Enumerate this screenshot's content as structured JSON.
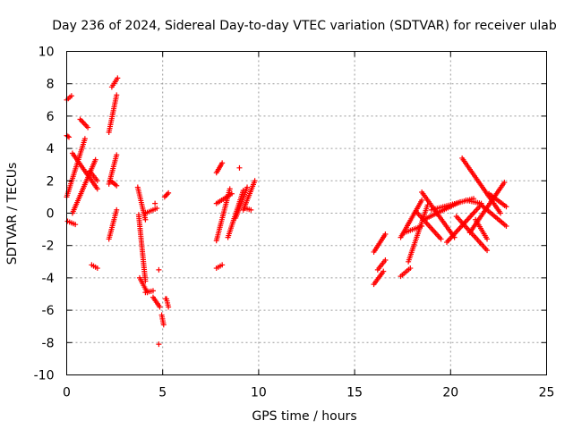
{
  "chart_data": {
    "type": "scatter",
    "title": "Day 236 of 2024, Sidereal Day-to-day VTEC variation (SDTVAR) for receiver ulab",
    "xlabel": "GPS time / hours",
    "ylabel": "SDTVAR / TECUs",
    "xlim": [
      0,
      25
    ],
    "ylim": [
      -10,
      10
    ],
    "xticks": [
      0,
      5,
      10,
      15,
      20,
      25
    ],
    "yticks": [
      -10,
      -8,
      -6,
      -4,
      -2,
      0,
      2,
      4,
      6,
      8,
      10
    ],
    "xtick_labels": [
      "0",
      "5",
      "10",
      "15",
      "20",
      "25"
    ],
    "ytick_labels": [
      "-10",
      "-8",
      "-6",
      "-4",
      "-2",
      "0",
      "2",
      "4",
      "6",
      "8",
      "10"
    ],
    "grid": true,
    "marker": "+",
    "color": "#ff0000",
    "series": [
      {
        "name": "SDTVAR",
        "segments": [
          {
            "x0": 0.0,
            "y0": 7.0,
            "x1": 0.25,
            "y1": 7.25
          },
          {
            "x0": 0.0,
            "y0": 4.8,
            "x1": 0.12,
            "y1": 4.7
          },
          {
            "x0": 0.0,
            "y0": 1.0,
            "x1": 0.95,
            "y1": 4.6
          },
          {
            "x0": 0.05,
            "y0": -0.5,
            "x1": 0.45,
            "y1": -0.7
          },
          {
            "x0": 0.3,
            "y0": 0.0,
            "x1": 1.5,
            "y1": 3.3
          },
          {
            "x0": 0.3,
            "y0": 3.7,
            "x1": 1.6,
            "y1": 1.5
          },
          {
            "x0": 0.7,
            "y0": 5.8,
            "x1": 1.1,
            "y1": 5.3
          },
          {
            "x0": 1.2,
            "y0": 2.6,
            "x1": 1.6,
            "y1": 2.0
          },
          {
            "x0": 1.3,
            "y0": -3.2,
            "x1": 1.6,
            "y1": -3.4
          },
          {
            "x0": 2.2,
            "y0": 5.0,
            "x1": 2.6,
            "y1": 7.3
          },
          {
            "x0": 2.35,
            "y0": 7.8,
            "x1": 2.65,
            "y1": 8.35
          },
          {
            "x0": 2.2,
            "y0": 1.8,
            "x1": 2.6,
            "y1": 3.6
          },
          {
            "x0": 2.2,
            "y0": -1.6,
            "x1": 2.6,
            "y1": 0.2
          },
          {
            "x0": 2.3,
            "y0": 2.0,
            "x1": 2.6,
            "y1": 1.7
          },
          {
            "x0": 3.7,
            "y0": 1.6,
            "x1": 4.1,
            "y1": -0.4
          },
          {
            "x0": 3.75,
            "y0": -0.1,
            "x1": 4.1,
            "y1": -4.2
          },
          {
            "x0": 3.8,
            "y0": -4.0,
            "x1": 4.2,
            "y1": -4.9
          },
          {
            "x0": 4.1,
            "y0": 0.0,
            "x1": 4.7,
            "y1": 0.3
          },
          {
            "x0": 4.1,
            "y0": -4.9,
            "x1": 4.5,
            "y1": -4.8
          },
          {
            "x0": 4.5,
            "y0": -5.2,
            "x1": 4.85,
            "y1": -5.8
          },
          {
            "x0": 4.95,
            "y0": -6.3,
            "x1": 5.05,
            "y1": -6.9
          },
          {
            "x0": 5.2,
            "y0": -5.3,
            "x1": 5.3,
            "y1": -5.8
          },
          {
            "x0": 5.1,
            "y0": 1.0,
            "x1": 5.3,
            "y1": 1.25
          },
          {
            "x0": 7.8,
            "y0": -1.7,
            "x1": 8.5,
            "y1": 1.5
          },
          {
            "x0": 7.8,
            "y0": 2.5,
            "x1": 8.1,
            "y1": 3.1
          },
          {
            "x0": 7.8,
            "y0": -3.4,
            "x1": 8.1,
            "y1": -3.2
          },
          {
            "x0": 7.8,
            "y0": 0.6,
            "x1": 8.6,
            "y1": 1.2
          },
          {
            "x0": 8.4,
            "y0": -1.5,
            "x1": 9.2,
            "y1": 1.4
          },
          {
            "x0": 8.8,
            "y0": -0.3,
            "x1": 9.4,
            "y1": 1.6
          },
          {
            "x0": 9.2,
            "y0": 0.2,
            "x1": 9.8,
            "y1": 2.0
          },
          {
            "x0": 9.3,
            "y0": 0.3,
            "x1": 9.6,
            "y1": 0.2
          },
          {
            "x0": 16.0,
            "y0": -4.4,
            "x1": 16.5,
            "y1": -3.6
          },
          {
            "x0": 16.0,
            "y0": -2.4,
            "x1": 16.6,
            "y1": -1.3
          },
          {
            "x0": 16.2,
            "y0": -3.5,
            "x1": 16.6,
            "y1": -2.9
          },
          {
            "x0": 17.4,
            "y0": -1.5,
            "x1": 18.5,
            "y1": 0.8
          },
          {
            "x0": 17.4,
            "y0": -3.9,
            "x1": 17.9,
            "y1": -3.4
          },
          {
            "x0": 17.6,
            "y0": -1.2,
            "x1": 18.5,
            "y1": -0.8
          },
          {
            "x0": 17.8,
            "y0": -3.0,
            "x1": 18.8,
            "y1": 0.5
          },
          {
            "x0": 18.2,
            "y0": 0.1,
            "x1": 19.5,
            "y1": -1.6
          },
          {
            "x0": 18.5,
            "y0": 1.3,
            "x1": 20.2,
            "y1": -1.5
          },
          {
            "x0": 18.6,
            "y0": -0.4,
            "x1": 20.5,
            "y1": 0.7
          },
          {
            "x0": 19.0,
            "y0": 0.2,
            "x1": 21.2,
            "y1": 0.9
          },
          {
            "x0": 19.8,
            "y0": -1.8,
            "x1": 21.5,
            "y1": 0.4
          },
          {
            "x0": 20.3,
            "y0": -0.2,
            "x1": 21.9,
            "y1": -2.3
          },
          {
            "x0": 20.6,
            "y0": 3.4,
            "x1": 22.6,
            "y1": 0.0
          },
          {
            "x0": 20.8,
            "y0": 0.8,
            "x1": 21.6,
            "y1": 0.6
          },
          {
            "x0": 21.0,
            "y0": -1.2,
            "x1": 22.8,
            "y1": 1.9
          },
          {
            "x0": 21.5,
            "y0": 0.6,
            "x1": 22.9,
            "y1": -0.8
          },
          {
            "x0": 21.3,
            "y0": -0.4,
            "x1": 21.9,
            "y1": -1.6
          },
          {
            "x0": 22.0,
            "y0": 1.2,
            "x1": 22.9,
            "y1": 0.4
          }
        ]
      }
    ],
    "isolated_points": [
      {
        "x": 4.8,
        "y": -8.1
      },
      {
        "x": 4.8,
        "y": -3.5
      },
      {
        "x": 4.6,
        "y": 0.6
      },
      {
        "x": 9.0,
        "y": 2.8
      },
      {
        "x": 5.15,
        "y": -5.3
      }
    ]
  }
}
